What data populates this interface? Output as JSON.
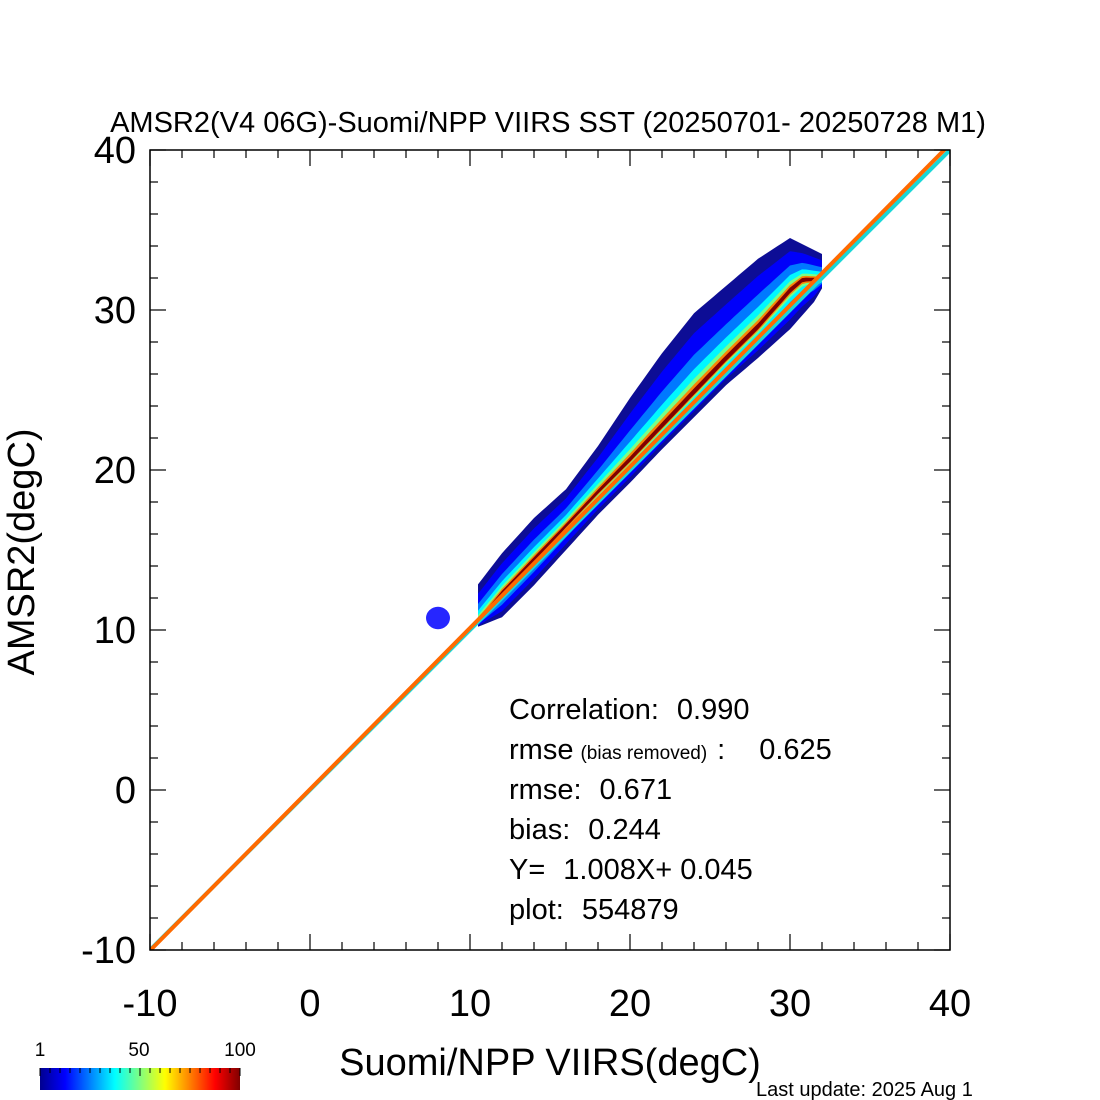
{
  "chart_data": {
    "type": "scatter",
    "title": "AMSR2(V4 06G)-Suomi/NPP VIIRS SST (20250701- 20250728 M1)",
    "xlabel": "Suomi/NPP VIIRS(degC)",
    "ylabel": "AMSR2(degC)",
    "xlim": [
      -10,
      40
    ],
    "ylim": [
      -10,
      40
    ],
    "x_ticks": [
      "-10",
      "0",
      "10",
      "20",
      "30",
      "40"
    ],
    "y_ticks": [
      "-10",
      "0",
      "10",
      "20",
      "30",
      "40"
    ],
    "grid": false,
    "density_ridge": [
      [
        10.5,
        10.5
      ],
      [
        12,
        12.3
      ],
      [
        14,
        14.4
      ],
      [
        16,
        16.5
      ],
      [
        18,
        18.6
      ],
      [
        20,
        20.6
      ],
      [
        22,
        22.7
      ],
      [
        24,
        24.8
      ],
      [
        26,
        26.9
      ],
      [
        28,
        28.9
      ],
      [
        30,
        31.2
      ],
      [
        30.8,
        31.9
      ]
    ],
    "density_spread_above": [
      [
        8,
        10.5
      ],
      [
        10,
        12.2
      ],
      [
        12,
        14.8
      ],
      [
        14,
        17
      ],
      [
        16,
        18.8
      ],
      [
        18,
        21.5
      ],
      [
        20,
        24.5
      ],
      [
        22,
        27.3
      ],
      [
        24,
        29.8
      ],
      [
        26,
        31.5
      ],
      [
        28,
        33.2
      ],
      [
        30,
        34.5
      ],
      [
        32,
        33.5
      ]
    ],
    "density_spread_below": [
      [
        10.5,
        10.2
      ],
      [
        12,
        10.8
      ],
      [
        14,
        12.8
      ],
      [
        16,
        15
      ],
      [
        18,
        17.2
      ],
      [
        20,
        19.2
      ],
      [
        22,
        21.3
      ],
      [
        24,
        23.3
      ],
      [
        26,
        25.3
      ],
      [
        28,
        27
      ],
      [
        30,
        28.8
      ],
      [
        31.5,
        30.5
      ],
      [
        32.5,
        32.2
      ]
    ],
    "cold_cluster": [
      [
        7.5,
        10.3
      ],
      [
        8.5,
        11.2
      ]
    ],
    "lines": [
      {
        "role": "one-to-one",
        "slope": 1.0,
        "intercept": 0.0,
        "color": "#19d7d7"
      },
      {
        "role": "regression",
        "slope": 1.008,
        "intercept": 0.045,
        "color": "#ff6a00"
      }
    ],
    "stats": [
      {
        "label": "Correlation:",
        "value": "0.990"
      },
      {
        "label": "rmse",
        "qualifier": "(bias removed)",
        "sep": ":",
        "value": "0.625"
      },
      {
        "label": "rmse:",
        "value": "0.671"
      },
      {
        "label": "bias:",
        "value": "0.244"
      },
      {
        "label": "Y=",
        "value": "1.008X+  0.045"
      },
      {
        "label": "plot:",
        "value": "554879"
      }
    ],
    "colorbar": {
      "ticks": [
        "1",
        "50",
        "100"
      ],
      "range": [
        1,
        100
      ],
      "colormap": [
        "#00008f",
        "#0000ff",
        "#0080ff",
        "#00ffff",
        "#80ff80",
        "#ffff00",
        "#ff8000",
        "#ff0000",
        "#800000"
      ]
    },
    "footer": "Last update: 2025 Aug  1"
  }
}
